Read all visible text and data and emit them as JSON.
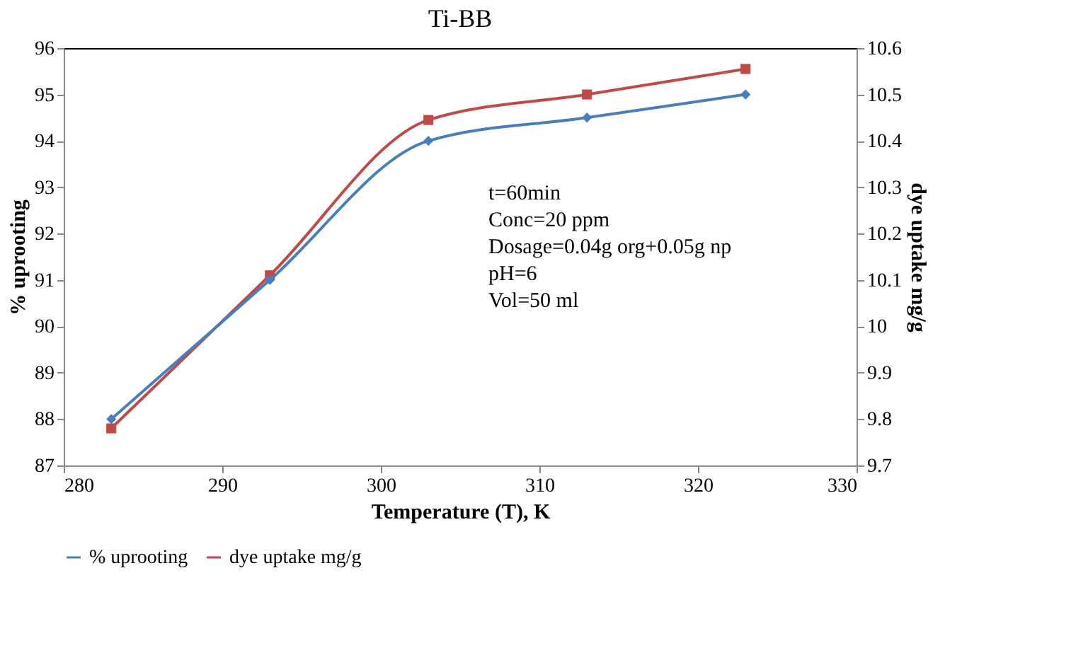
{
  "chart_data": {
    "type": "line",
    "title": "Ti-BB",
    "xlabel": "Temperature (T), K",
    "ylabel": "% uprooting",
    "y2label": "dye uptake mg/g",
    "x": [
      283,
      293,
      303,
      313,
      323
    ],
    "series": [
      {
        "name": "% uprooting",
        "color": "#4a7ebb",
        "marker": "diamond",
        "values": [
          88,
          91,
          94,
          94.5,
          95
        ]
      },
      {
        "name": "dye uptake mg/g",
        "color": "#be4b48",
        "marker": "square",
        "axis": "y2",
        "values": [
          9.78,
          10.11,
          10.445,
          10.5,
          10.555
        ]
      }
    ],
    "xlim": [
      280,
      330
    ],
    "xticks": [
      280,
      290,
      300,
      310,
      320,
      330
    ],
    "ylim": [
      87,
      96
    ],
    "yticks": [
      87,
      88,
      89,
      90,
      91,
      92,
      93,
      94,
      95,
      96
    ],
    "y2lim": [
      9.7,
      10.6
    ],
    "y2ticks": [
      9.7,
      9.8,
      9.9,
      10,
      10.1,
      10.2,
      10.3,
      10.4,
      10.5,
      10.6
    ],
    "annotations": [
      "t=60min",
      "Conc=20 ppm",
      "Dosage=0.04g org+0.05g np",
      "pH=6",
      "Vol=50 ml"
    ],
    "legend": "bottom",
    "grid": false
  }
}
